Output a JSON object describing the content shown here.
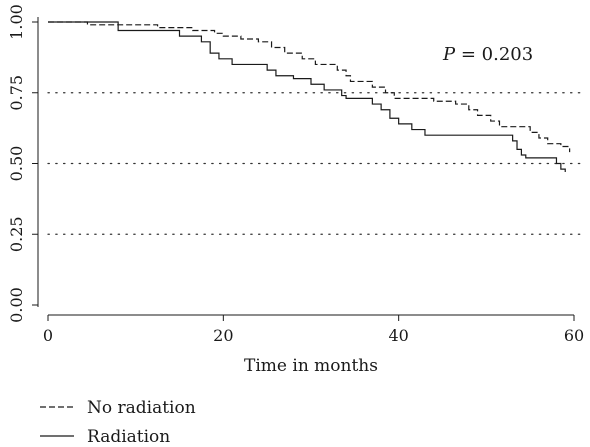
{
  "chart_data": {
    "type": "line",
    "title": "",
    "xlabel": "Time in months",
    "ylabel": "",
    "xlim": [
      0,
      60
    ],
    "ylim": [
      0,
      1
    ],
    "x_ticks": [
      "0",
      "20",
      "40",
      "60"
    ],
    "y_ticks": [
      "0.00",
      "0.25",
      "0.50",
      "0.75",
      "1.00"
    ],
    "grid": "dotted horizontal at 0.25, 0.50, 0.75",
    "annotation": {
      "italic": "P",
      "text": " = 0.203"
    },
    "legend": {
      "placement": "bottom-left"
    },
    "series": [
      {
        "name": "No radiation",
        "line_style": "dashed",
        "color": "#1a1a1a",
        "points": [
          [
            0,
            1.0
          ],
          [
            4.5,
            0.99
          ],
          [
            12.5,
            0.98
          ],
          [
            16.5,
            0.97
          ],
          [
            19,
            0.96
          ],
          [
            20,
            0.95
          ],
          [
            22,
            0.94
          ],
          [
            24,
            0.93
          ],
          [
            25.5,
            0.91
          ],
          [
            27,
            0.89
          ],
          [
            29,
            0.87
          ],
          [
            30.5,
            0.85
          ],
          [
            33,
            0.83
          ],
          [
            34,
            0.81
          ],
          [
            34.5,
            0.79
          ],
          [
            37,
            0.77
          ],
          [
            38.5,
            0.75
          ],
          [
            39.5,
            0.73
          ],
          [
            44,
            0.72
          ],
          [
            46.5,
            0.71
          ],
          [
            48,
            0.69
          ],
          [
            49,
            0.67
          ],
          [
            50.5,
            0.65
          ],
          [
            51.5,
            0.63
          ],
          [
            55,
            0.61
          ],
          [
            56,
            0.59
          ],
          [
            57,
            0.57
          ],
          [
            58.5,
            0.56
          ],
          [
            59.5,
            0.54
          ]
        ]
      },
      {
        "name": "Radiation",
        "line_style": "solid",
        "color": "#1a1a1a",
        "points": [
          [
            0,
            1.0
          ],
          [
            8,
            0.97
          ],
          [
            15,
            0.95
          ],
          [
            17.5,
            0.93
          ],
          [
            18.5,
            0.89
          ],
          [
            19.5,
            0.87
          ],
          [
            21,
            0.85
          ],
          [
            25,
            0.83
          ],
          [
            26,
            0.81
          ],
          [
            28,
            0.8
          ],
          [
            30,
            0.78
          ],
          [
            31.5,
            0.76
          ],
          [
            33.5,
            0.74
          ],
          [
            34,
            0.73
          ],
          [
            37,
            0.71
          ],
          [
            38,
            0.69
          ],
          [
            39,
            0.66
          ],
          [
            40,
            0.64
          ],
          [
            41.5,
            0.62
          ],
          [
            43,
            0.6
          ],
          [
            53,
            0.58
          ],
          [
            53.5,
            0.55
          ],
          [
            54,
            0.53
          ],
          [
            54.5,
            0.52
          ],
          [
            58,
            0.5
          ],
          [
            58.5,
            0.48
          ],
          [
            59,
            0.47
          ]
        ]
      }
    ]
  }
}
